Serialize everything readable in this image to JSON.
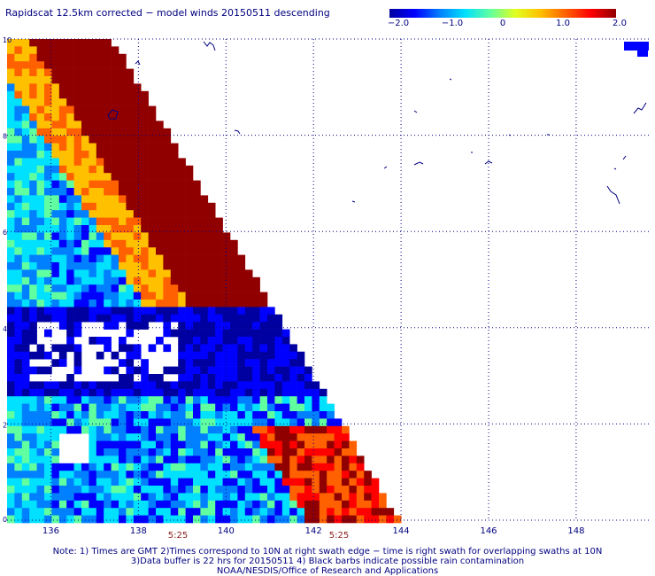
{
  "title": "Rapidscat 12.5km corrected − model winds 20150511 descending",
  "colorbar": {
    "labels": [
      "−2.0",
      "−1.0",
      "0",
      "1.0",
      "2.0"
    ],
    "values": [
      -2.0,
      -1.0,
      0,
      1.0,
      2.0
    ],
    "colors": [
      "#0000a0",
      "#0000ff",
      "#0080ff",
      "#00e0ff",
      "#60ffa0",
      "#e0ff20",
      "#ffc000",
      "#ff6000",
      "#ff0000",
      "#900000"
    ]
  },
  "map": {
    "lon_labels": [
      "136",
      "138",
      "140",
      "142",
      "144",
      "146",
      "148"
    ],
    "lat_labels": [
      "0",
      "2",
      "4",
      "6",
      "8",
      "10"
    ],
    "lon_range": [
      135,
      149.7
    ],
    "lat_range": [
      0,
      10
    ],
    "grid_line_color": "#000080",
    "land_color": "#000080",
    "missing_color": "#ffffff"
  },
  "time_labels": [
    {
      "text": "5:25",
      "lon": 139.0
    },
    {
      "text": "5:25",
      "lon": 143.0
    }
  ],
  "notes": [
    "Note: 1) Times are GMT 2)Times correspond to 10N at right swath edge − time is right swath for overlapping swaths at 10N",
    "3)Data buffer is 22 hrs for 20150511 4) Black barbs indicate possible rain contamination",
    "NOAA/NESDIS/Office of Research and Applications"
  ]
}
